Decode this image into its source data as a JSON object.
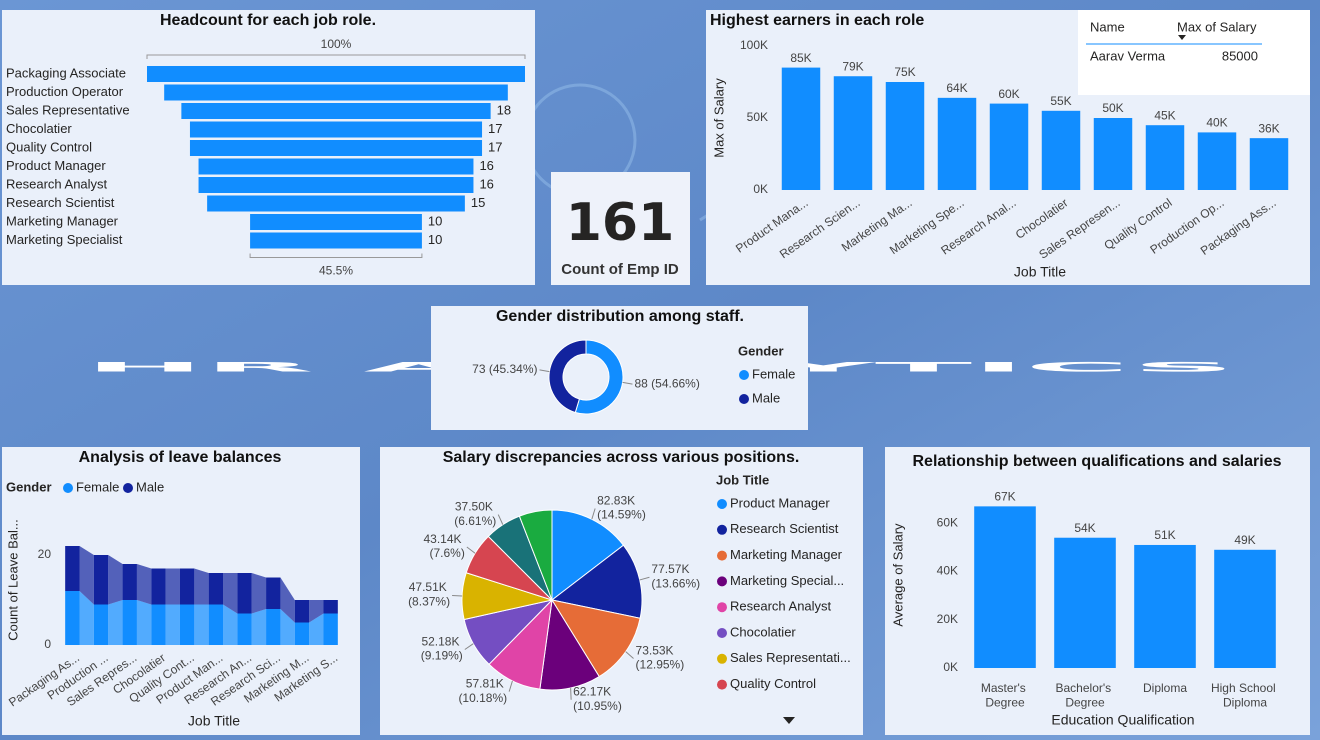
{
  "title": "HR ANALYTICS",
  "card": {
    "value": 161,
    "label": "Count of Emp ID"
  },
  "table": {
    "columns": [
      "Name",
      "Max of Salary"
    ],
    "rows": [
      [
        "Aarav Verma",
        85000
      ]
    ]
  },
  "chart_data": [
    {
      "type": "funnel",
      "title": "Headcount for each job role.",
      "categories": [
        "Packaging Associate",
        "Production Operator",
        "Sales Representative",
        "Chocolatier",
        "Quality Control",
        "Product Manager",
        "Research Analyst",
        "Research Scientist",
        "Marketing Manager",
        "Marketing Specialist"
      ],
      "values": [
        22,
        20,
        18,
        17,
        17,
        16,
        16,
        15,
        10,
        10
      ],
      "value_labels": [
        null,
        null,
        "18",
        "17",
        "17",
        "16",
        "16",
        "15",
        "10",
        "10"
      ],
      "top_label": "100%",
      "bottom_label": "45.5%",
      "color": "#118dff"
    },
    {
      "type": "bar",
      "title": "Highest earners in each role",
      "categories": [
        "Product Mana...",
        "Research Scien...",
        "Marketing Ma...",
        "Marketing Spe...",
        "Research Anal...",
        "Chocolatier",
        "Sales Represen...",
        "Quality Control",
        "Production Op...",
        "Packaging Ass..."
      ],
      "values": [
        85000,
        79000,
        75000,
        64000,
        60000,
        55000,
        50000,
        45000,
        40000,
        36000
      ],
      "value_labels": [
        "85K",
        "79K",
        "75K",
        "64K",
        "60K",
        "55K",
        "50K",
        "45K",
        "40K",
        "36K"
      ],
      "ylim": [
        0,
        100000
      ],
      "yticks": [
        {
          "value": 0,
          "label": "0K"
        },
        {
          "value": 50000,
          "label": "50K"
        },
        {
          "value": 100000,
          "label": "100K"
        }
      ],
      "x_label": "Job Title",
      "y_label": "Max of Salary",
      "color": "#118dff",
      "grid": false
    },
    {
      "type": "donut",
      "title": "Gender distribution among staff.",
      "legend_title": "Gender",
      "categories": [
        "Female",
        "Male"
      ],
      "values": [
        88,
        73
      ],
      "value_labels": [
        "88 (54.66%)",
        "73 (45.34%)"
      ],
      "colors": [
        "#118dff",
        "#12239e"
      ]
    },
    {
      "type": "ribbon",
      "title": "Analysis of leave balances",
      "legend_title": "Gender",
      "categories": [
        "Packaging As...",
        "Production ...",
        "Sales Repres...",
        "Chocolatier",
        "Quality Cont...",
        "Product Man...",
        "Research An...",
        "Research Sci...",
        "Marketing M...",
        "Marketing S..."
      ],
      "series": [
        {
          "name": "Female",
          "color": "#118dff",
          "values": [
            12,
            9,
            10,
            9,
            9,
            9,
            7,
            8,
            5,
            7
          ]
        },
        {
          "name": "Male",
          "color": "#12239e",
          "values": [
            10,
            11,
            8,
            8,
            8,
            7,
            9,
            7,
            5,
            3
          ]
        }
      ],
      "ylim": [
        0,
        24
      ],
      "yticks": [
        0,
        20
      ],
      "x_label": "Job Title",
      "y_label": "Count of Leave Bal...",
      "grid": false
    },
    {
      "type": "pie",
      "title": "Salary discrepancies across various positions.",
      "legend_title": "Job Title",
      "categories": [
        "Product Manager",
        "Research Scientist",
        "Marketing Manager",
        "Marketing Special...",
        "Research Analyst",
        "Chocolatier",
        "Sales Representati...",
        "Quality Control",
        null,
        null
      ],
      "values": [
        82830,
        77570,
        73530,
        62170,
        57810,
        52180,
        47510,
        43140,
        37500,
        33500
      ],
      "value_labels": [
        "82.83K (14.59%)",
        "77.57K (13.66%)",
        "73.53K (12.95%)",
        "62.17K (10.95%)",
        "57.81K (10.18%)",
        "52.18K (9.19%)",
        "47.51K (8.37%)",
        "43.14K (7.6%)",
        "37.50K (6.61%)",
        null
      ],
      "colors": [
        "#118dff",
        "#12239e",
        "#e66c37",
        "#6b007b",
        "#e044a7",
        "#744ec2",
        "#d9b300",
        "#d64550",
        "#197278",
        "#1aab40"
      ]
    },
    {
      "type": "bar",
      "title": "Relationship between qualifications and salaries",
      "categories": [
        "Master's Degree",
        "Bachelor's Degree",
        "Diploma",
        "High School Diploma"
      ],
      "values": [
        67000,
        54000,
        51000,
        49000
      ],
      "value_labels": [
        "67K",
        "54K",
        "51K",
        "49K"
      ],
      "ylim": [
        0,
        80000
      ],
      "yticks": [
        {
          "value": 0,
          "label": "0K"
        },
        {
          "value": 20000,
          "label": "20K"
        },
        {
          "value": 40000,
          "label": "40K"
        },
        {
          "value": 60000,
          "label": "60K"
        }
      ],
      "x_label": "Education Qualification",
      "y_label": "Average of Salary",
      "color": "#118dff",
      "grid": false
    }
  ]
}
